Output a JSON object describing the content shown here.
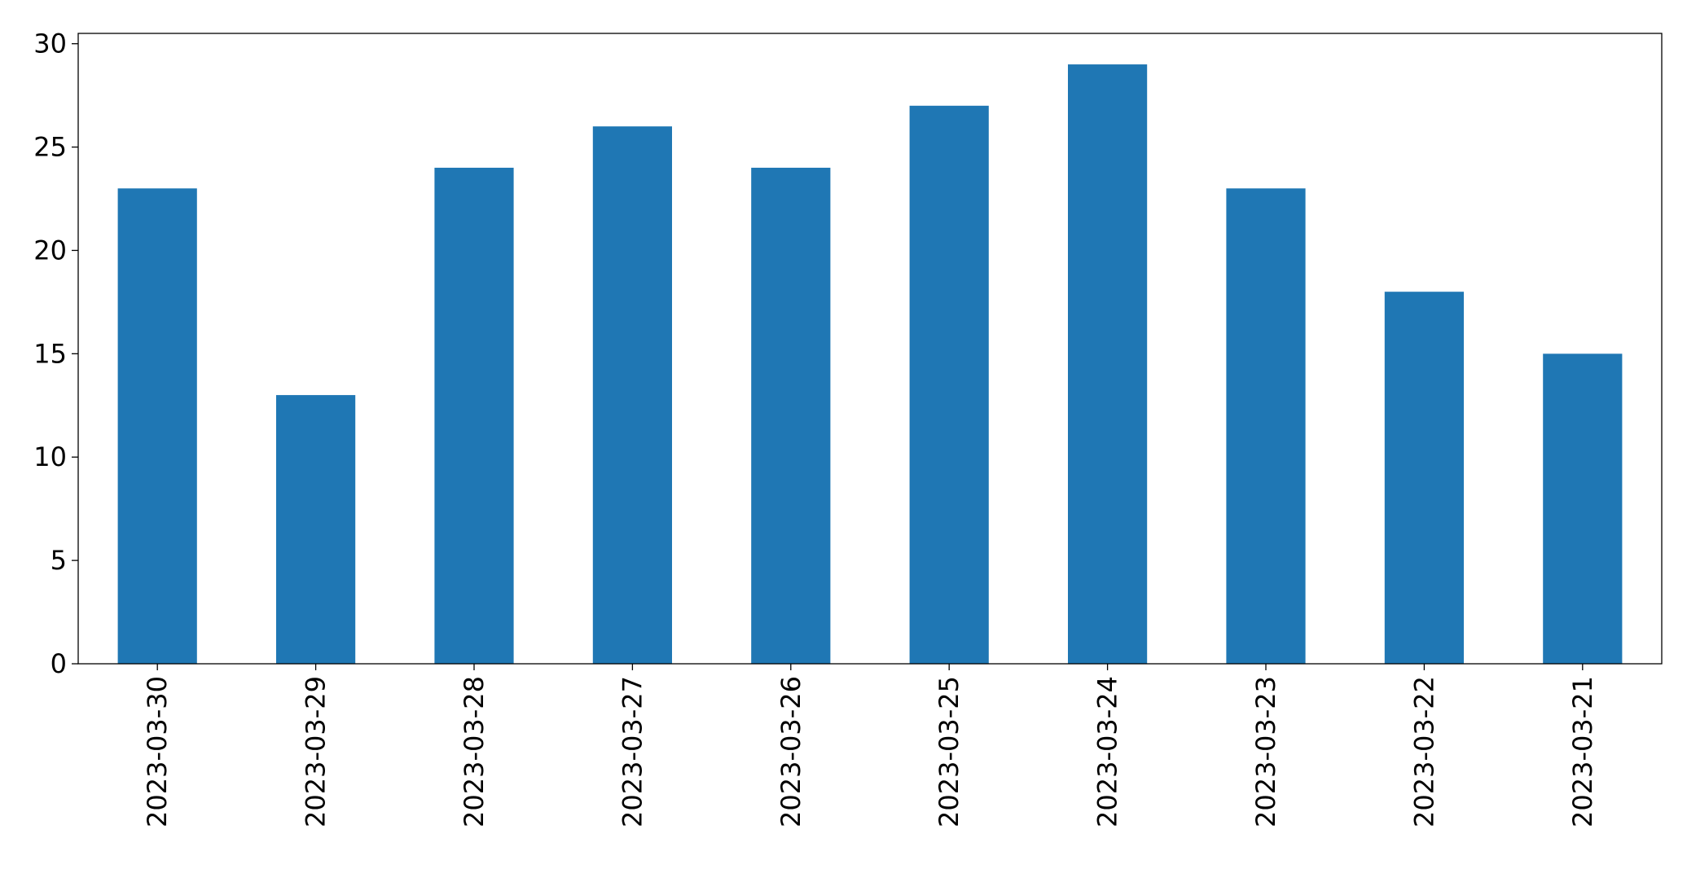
{
  "chart_data": {
    "type": "bar",
    "title": "",
    "xlabel": "",
    "ylabel": "",
    "categories": [
      "2023-03-30",
      "2023-03-29",
      "2023-03-28",
      "2023-03-27",
      "2023-03-26",
      "2023-03-25",
      "2023-03-24",
      "2023-03-23",
      "2023-03-22",
      "2023-03-21"
    ],
    "values": [
      23,
      13,
      24,
      26,
      24,
      27,
      29,
      23,
      18,
      15
    ],
    "ylim": [
      0,
      30.5
    ],
    "yticks": [
      0,
      5,
      10,
      15,
      20,
      25,
      30
    ],
    "bar_color": "#1f77b4",
    "grid": false,
    "legend": "none"
  }
}
